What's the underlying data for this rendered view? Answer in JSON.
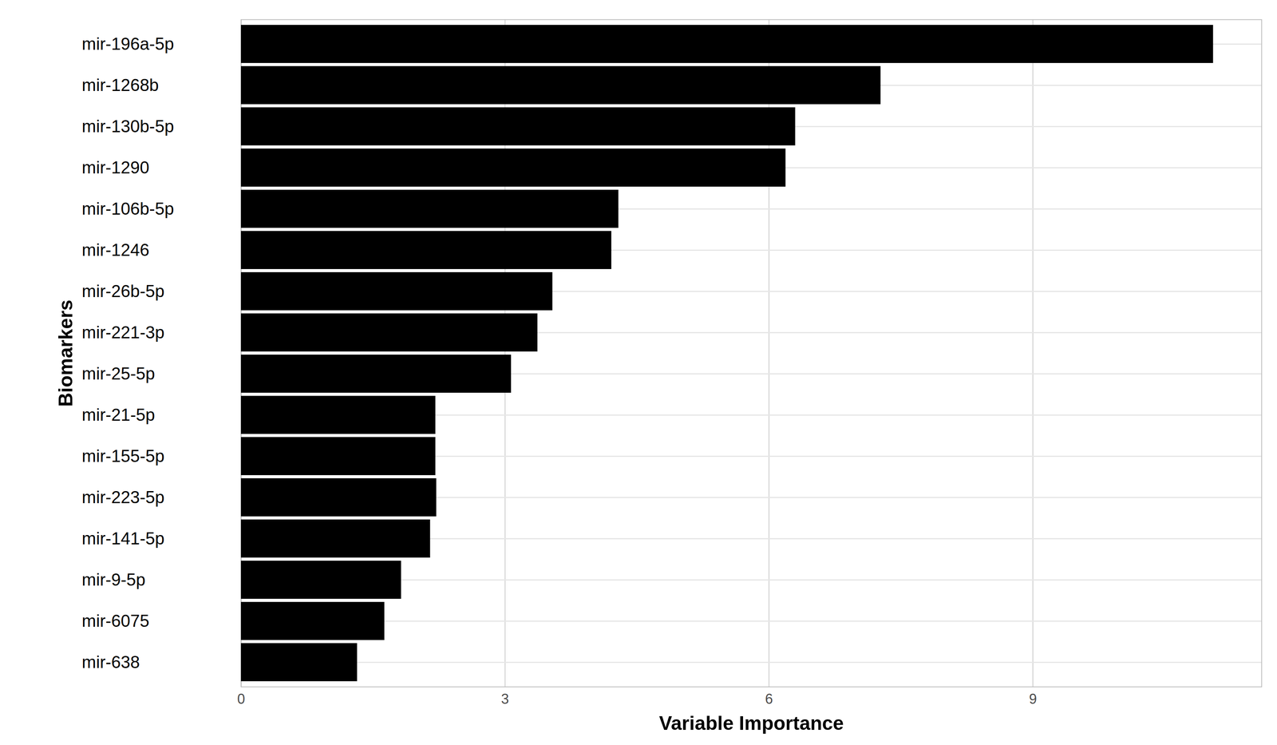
{
  "chart_data": {
    "type": "bar",
    "orientation": "horizontal",
    "xlabel": "Variable Importance",
    "ylabel": "Biomarkers",
    "categories": [
      "mir-196a-5p",
      "mir-1268b",
      "mir-130b-5p",
      "mir-1290",
      "mir-106b-5p",
      "mir-1246",
      "mir-26b-5p",
      "mir-221-3p",
      "mir-25-5p",
      "mir-21-5p",
      "mir-155-5p",
      "mir-223-5p",
      "mir-141-5p",
      "mir-9-5p",
      "mir-6075",
      "mir-638"
    ],
    "values": [
      11.05,
      7.27,
      6.3,
      6.19,
      4.29,
      4.21,
      3.54,
      3.37,
      3.07,
      2.21,
      2.21,
      2.22,
      2.15,
      1.82,
      1.63,
      1.32
    ],
    "color": "#000000",
    "xlim": [
      0,
      11.6
    ],
    "xticks": [
      0,
      3,
      6,
      9
    ],
    "grid": true
  }
}
